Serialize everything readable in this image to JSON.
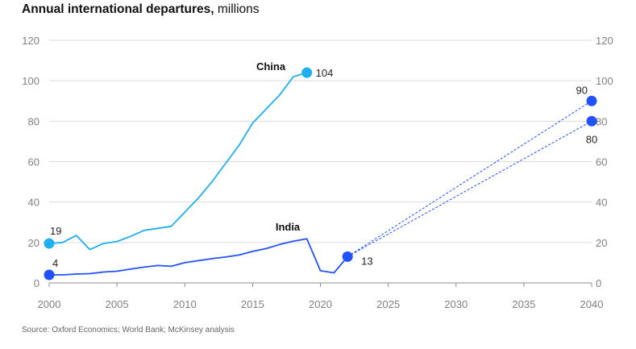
{
  "title": {
    "main": "Annual international departures,",
    "unit": "millions"
  },
  "source": "Source: Oxford Economics; World Bank; McKinsey analysis",
  "colors": {
    "china": "#1eaff0",
    "india": "#2251ff",
    "grid": "#dcdcdc",
    "axis": "#8c8c8c",
    "tick": "#808080"
  },
  "chart_data": {
    "type": "line",
    "title": "Annual international departures, millions",
    "xlabel": "",
    "ylabel": "",
    "xlim": [
      2000,
      2040
    ],
    "ylim": [
      0,
      120
    ],
    "x_ticks": [
      2000,
      2005,
      2010,
      2015,
      2020,
      2025,
      2030,
      2035,
      2040
    ],
    "y_ticks": [
      0,
      20,
      40,
      60,
      80,
      100,
      120
    ],
    "grid": true,
    "series": [
      {
        "name": "China",
        "key": "china",
        "x": [
          2000,
          2001,
          2002,
          2003,
          2004,
          2005,
          2006,
          2007,
          2008,
          2009,
          2010,
          2011,
          2012,
          2013,
          2014,
          2015,
          2016,
          2017,
          2018,
          2019
        ],
        "values": [
          19.5,
          20,
          23.5,
          16.5,
          19.5,
          20.5,
          23,
          26,
          27,
          28,
          35,
          42,
          50,
          59,
          68,
          79,
          86,
          93,
          102,
          104
        ]
      },
      {
        "name": "India",
        "key": "india",
        "x": [
          2000,
          2001,
          2002,
          2003,
          2004,
          2005,
          2006,
          2007,
          2008,
          2009,
          2010,
          2011,
          2012,
          2013,
          2014,
          2015,
          2016,
          2017,
          2018,
          2019,
          2020,
          2021,
          2022
        ],
        "values": [
          4,
          4,
          4.4,
          4.6,
          5.4,
          5.8,
          6.8,
          7.8,
          8.6,
          8.2,
          10,
          11,
          12,
          12.8,
          13.8,
          15.6,
          17,
          19,
          20.6,
          21.8,
          6,
          5,
          13
        ]
      }
    ],
    "projections": [
      {
        "from": [
          2022,
          13
        ],
        "to": [
          2040,
          90
        ],
        "label": "90"
      },
      {
        "from": [
          2022,
          13
        ],
        "to": [
          2040,
          80
        ],
        "label": "80"
      }
    ],
    "markers": [
      {
        "series": "china",
        "x": 2000,
        "y": 19.5,
        "label": "19"
      },
      {
        "series": "china",
        "x": 2019,
        "y": 104,
        "label": "104"
      },
      {
        "series": "india",
        "x": 2000,
        "y": 4,
        "label": "4"
      },
      {
        "series": "india",
        "x": 2022,
        "y": 13,
        "label": "13"
      },
      {
        "series": "india",
        "x": 2040,
        "y": 90,
        "label": "90"
      },
      {
        "series": "india",
        "x": 2040,
        "y": 80,
        "label": "80"
      }
    ]
  }
}
